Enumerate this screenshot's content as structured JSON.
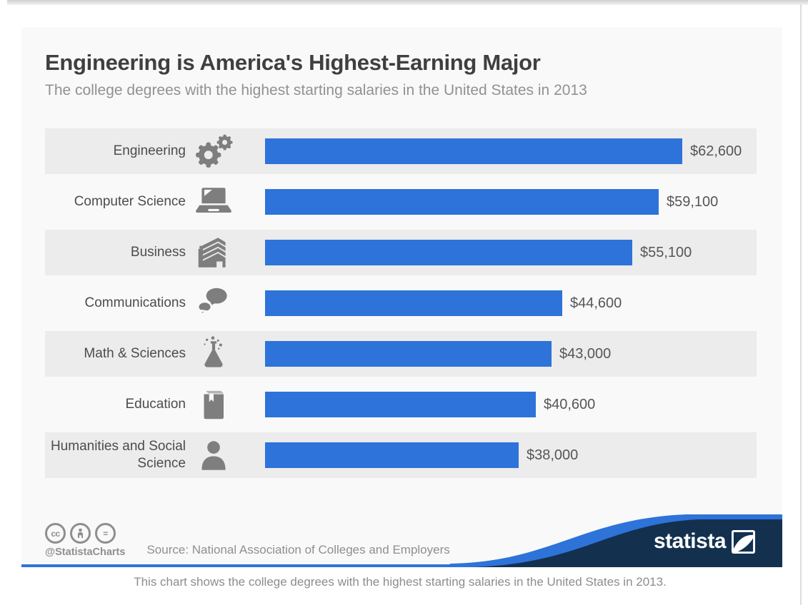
{
  "page": {
    "caption": "This chart shows the college degrees with the highest starting salaries in the United States in 2013."
  },
  "header": {
    "title": "Engineering is America's Highest-Earning Major",
    "subtitle": "The college degrees with the highest starting salaries in the United States in 2013"
  },
  "footer": {
    "handle": "@StatistaCharts",
    "source": "Source: National Association of Colleges and Employers",
    "license_icons": [
      "cc-icon",
      "attribution-person-icon",
      "equals-icon"
    ],
    "brand_name": "statista"
  },
  "colors": {
    "bar_blue": "#2d73da",
    "wave_blue": "#2e73d9",
    "brand_navy": "#13314f",
    "stripe_gray": "#ececec",
    "card_bg": "#f9f9f9",
    "icon_gray": "#7e7e7e"
  },
  "chart_data": {
    "type": "bar",
    "orientation": "horizontal",
    "title": "Engineering is America's Highest-Earning Major",
    "subtitle": "The college degrees with the highest starting salaries in the United States in 2013",
    "categories": [
      "Engineering",
      "Computer Science",
      "Business",
      "Communications",
      "Math & Sciences",
      "Education",
      "Humanities and Social Science"
    ],
    "values": [
      62600,
      59100,
      55100,
      44600,
      43000,
      40600,
      38000
    ],
    "value_labels": [
      "$62,600",
      "$59,100",
      "$55,100",
      "$44,600",
      "$43,000",
      "$40,600",
      "$38,000"
    ],
    "icons": [
      "gears-icon",
      "laptop-icon",
      "building-icon",
      "speech-bubbles-icon",
      "flask-icon",
      "book-icon",
      "person-icon"
    ],
    "xlim": [
      0,
      62600
    ],
    "unit": "USD",
    "grid": false,
    "legend": false,
    "bar_color": "#2d73da"
  }
}
